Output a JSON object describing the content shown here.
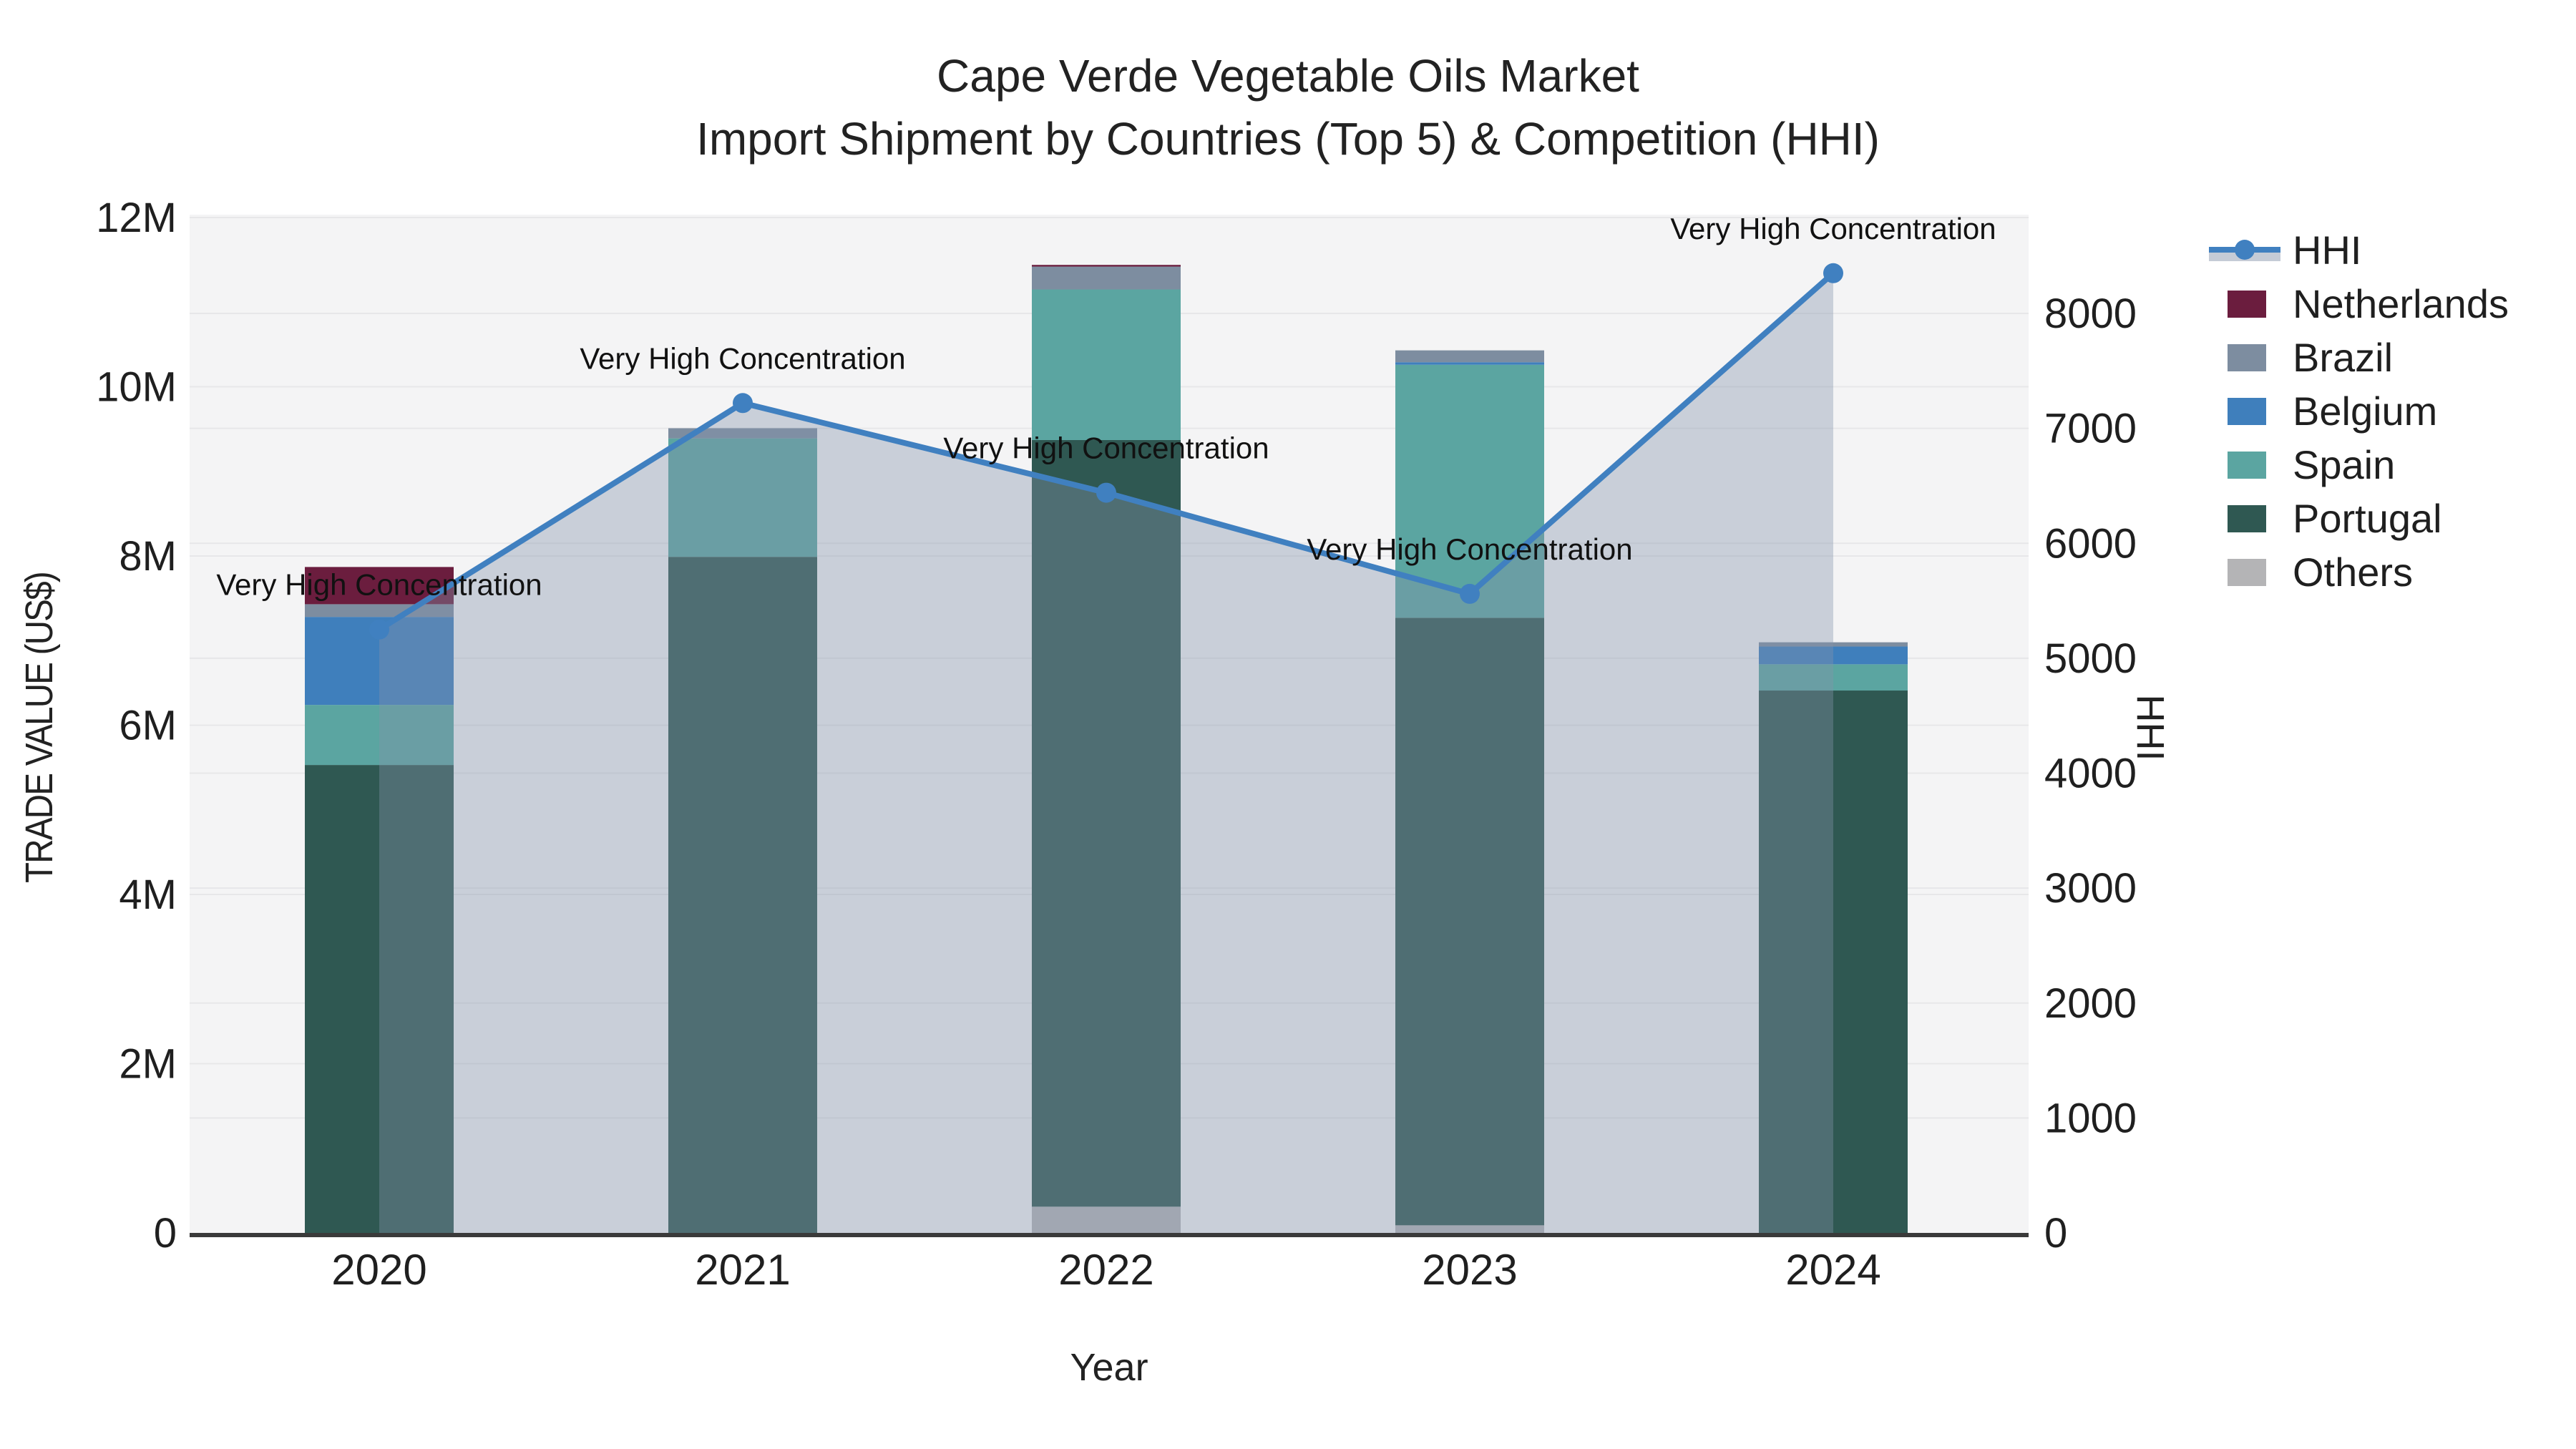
{
  "title": {
    "line1": "Cape Verde Vegetable Oils Market",
    "line2": "Import Shipment by Countries (Top 5) & Competition (HHI)"
  },
  "axes": {
    "x_title": "Year",
    "y_left_title": "TRADE VALUE (US$)",
    "y_right_title": "HHI"
  },
  "legend": {
    "items": [
      {
        "label": "HHI",
        "type": "line",
        "color": "#4080c0"
      },
      {
        "label": "Netherlands",
        "type": "rect",
        "color": "#6b1d3e"
      },
      {
        "label": "Brazil",
        "type": "rect",
        "color": "#7d8da0"
      },
      {
        "label": "Belgium",
        "type": "rect",
        "color": "#3f7fbc"
      },
      {
        "label": "Spain",
        "type": "rect",
        "color": "#5ba5a1"
      },
      {
        "label": "Portugal",
        "type": "rect",
        "color": "#2f5852"
      },
      {
        "label": "Others",
        "type": "rect",
        "color": "#b4b4b6"
      }
    ]
  },
  "colors": {
    "plot_bg": "#f4f4f5",
    "grid": "#e7e7e9",
    "axis_line": "#3a3a3a",
    "hhi_line": "#4080c0",
    "hhi_area_fill": "rgba(131,146,172,0.38)",
    "text": "#1f1f1f"
  },
  "chart_data": {
    "type": "combo: stacked bar (left axis) + line with area (right axis)",
    "title": "Cape Verde Vegetable Oils Market — Import Shipment by Countries (Top 5) & Competition (HHI)",
    "categories": [
      "2020",
      "2021",
      "2022",
      "2023",
      "2024"
    ],
    "bar_value_unit": "million US$",
    "stack_order_bottom_to_top": [
      "Others",
      "Portugal",
      "Spain",
      "Belgium",
      "Brazil",
      "Netherlands"
    ],
    "series": [
      {
        "name": "Others",
        "color": "#b4b4b6",
        "values": [
          0,
          0,
          0.31,
          0.09,
          0
        ]
      },
      {
        "name": "Portugal",
        "color": "#2f5852",
        "values": [
          5.53,
          7.99,
          9.06,
          7.18,
          6.41
        ]
      },
      {
        "name": "Spain",
        "color": "#5ba5a1",
        "values": [
          0.71,
          1.4,
          1.78,
          2.99,
          0.31
        ]
      },
      {
        "name": "Belgium",
        "color": "#3f7fbc",
        "values": [
          1.04,
          0,
          0,
          0.03,
          0.21
        ]
      },
      {
        "name": "Brazil",
        "color": "#7d8da0",
        "values": [
          0.15,
          0.12,
          0.27,
          0.14,
          0.05
        ]
      },
      {
        "name": "Netherlands",
        "color": "#6b1d3e",
        "values": [
          0.44,
          0,
          0.02,
          0,
          0
        ]
      }
    ],
    "bar_totals": [
      7.87,
      9.51,
      11.44,
      10.43,
      6.98
    ],
    "hhi": {
      "name": "HHI",
      "values": [
        5250,
        7220,
        6440,
        5560,
        8350
      ],
      "annotations": [
        "Very High Concentration",
        "Very High Concentration",
        "Very High Concentration",
        "Very High Concentration",
        "Very High Concentration"
      ]
    },
    "xlabel": "Year",
    "ylabel_left": "TRADE VALUE (US$)",
    "ylabel_right": "HHI",
    "ylim_left": [
      0,
      12000000
    ],
    "left_axis_ticks": [
      {
        "value": 0,
        "label": "0"
      },
      {
        "value": 2,
        "label": "2M"
      },
      {
        "value": 4,
        "label": "4M"
      },
      {
        "value": 6,
        "label": "6M"
      },
      {
        "value": 8,
        "label": "8M"
      },
      {
        "value": 10,
        "label": "10M"
      },
      {
        "value": 12,
        "label": "12M"
      }
    ],
    "ylim_right": [
      0,
      8500
    ],
    "right_axis_ticks": [
      {
        "value": 0,
        "label": "0"
      },
      {
        "value": 1000,
        "label": "1000"
      },
      {
        "value": 2000,
        "label": "2000"
      },
      {
        "value": 3000,
        "label": "3000"
      },
      {
        "value": 4000,
        "label": "4000"
      },
      {
        "value": 5000,
        "label": "5000"
      },
      {
        "value": 6000,
        "label": "6000"
      },
      {
        "value": 7000,
        "label": "7000"
      },
      {
        "value": 8000,
        "label": "8000"
      }
    ],
    "grid": true,
    "legend_position": "right"
  }
}
